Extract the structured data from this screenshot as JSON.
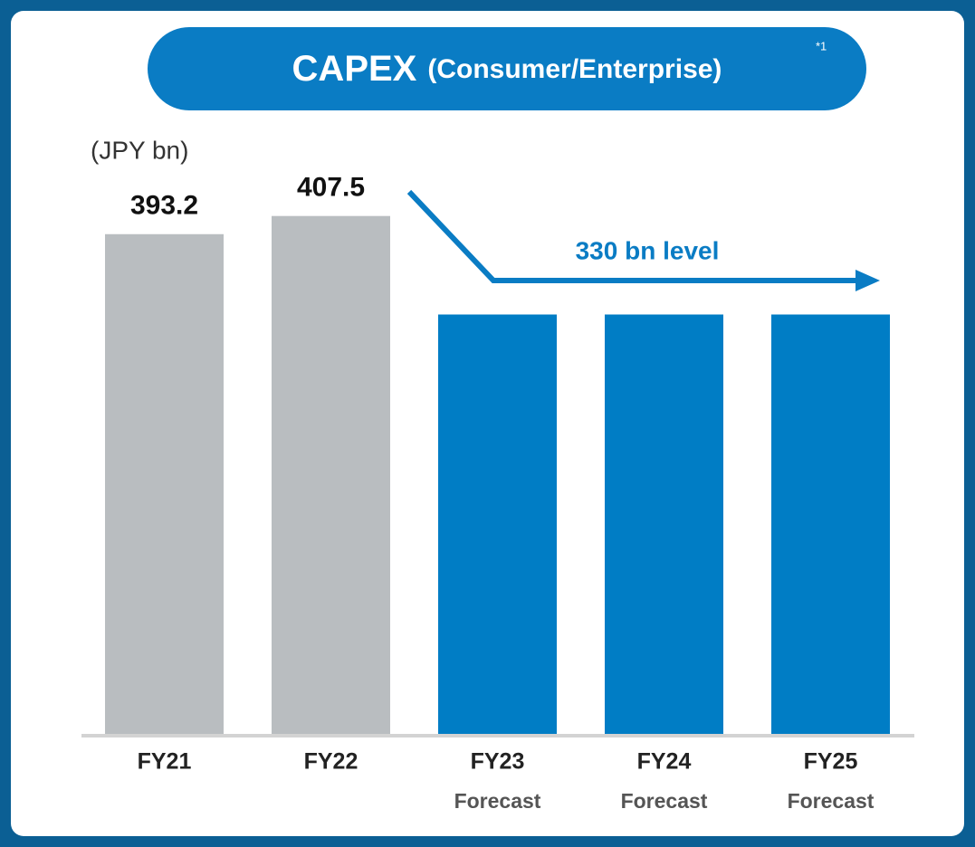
{
  "chart_data": {
    "type": "bar",
    "title": "CAPEX",
    "subtitle": "(Consumer/Enterprise)",
    "footnote_marker": "*1",
    "unit_label": "(JPY bn)",
    "annotation": "330 bn level",
    "categories": [
      "FY21",
      "FY22",
      "FY23",
      "FY24",
      "FY25"
    ],
    "sublabels": [
      null,
      null,
      "Forecast",
      "Forecast",
      "Forecast"
    ],
    "values": [
      393.2,
      407.5,
      330,
      330,
      330
    ],
    "show_value_labels": [
      true,
      true,
      false,
      false,
      false
    ],
    "colors": [
      "#b9bdc0",
      "#b9bdc0",
      "#007dc5",
      "#007dc5",
      "#007dc5"
    ],
    "annotation_color": "#0a7cc4",
    "ylim": [
      0,
      450
    ]
  }
}
